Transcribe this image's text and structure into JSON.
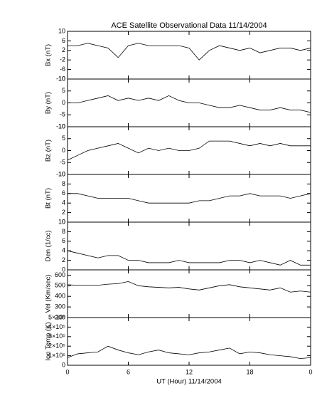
{
  "chart_data": [
    {
      "type": "line",
      "title": "ACE Satellite Observational Data   11/14/2004",
      "ylabel": "Bx (nT)",
      "x": [
        0,
        1,
        2,
        3,
        4,
        5,
        6,
        7,
        8,
        9,
        10,
        11,
        12,
        13,
        14,
        15,
        16,
        17,
        18,
        19,
        20,
        21,
        22,
        23,
        24
      ],
      "xlim": [
        0,
        24
      ],
      "xticks": [
        0,
        6,
        12,
        18,
        24
      ],
      "series": [
        {
          "color": "#000000",
          "values": [
            4,
            4,
            5,
            4,
            3,
            -1,
            4,
            5,
            4,
            4,
            4,
            4,
            3,
            -2,
            2,
            4,
            3,
            2,
            3,
            1,
            2,
            3,
            3,
            2,
            3
          ]
        }
      ],
      "ylim": [
        -10,
        10
      ],
      "yticks": [
        -10,
        -6,
        -2,
        2,
        6,
        10
      ]
    },
    {
      "type": "line",
      "ylabel": "By (nT)",
      "x": [
        0,
        1,
        2,
        3,
        4,
        5,
        6,
        7,
        8,
        9,
        10,
        11,
        12,
        13,
        14,
        15,
        16,
        17,
        18,
        19,
        20,
        21,
        22,
        23,
        24
      ],
      "xlim": [
        0,
        24
      ],
      "xticks": [
        0,
        6,
        12,
        18,
        24
      ],
      "series": [
        {
          "color": "#000000",
          "values": [
            0,
            0,
            1,
            2,
            3,
            1,
            2,
            1,
            2,
            1,
            3,
            1,
            0,
            0,
            -1,
            -2,
            -2,
            -1,
            -2,
            -3,
            -3,
            -2,
            -3,
            -3,
            -4
          ]
        }
      ],
      "ylim": [
        -10,
        10
      ],
      "yticks": [
        -10,
        -5,
        0,
        5,
        10
      ]
    },
    {
      "type": "line",
      "ylabel": "Bz (nT)",
      "x": [
        0,
        1,
        2,
        3,
        4,
        5,
        6,
        7,
        8,
        9,
        10,
        11,
        12,
        13,
        14,
        15,
        16,
        17,
        18,
        19,
        20,
        21,
        22,
        23,
        24
      ],
      "xlim": [
        0,
        24
      ],
      "xticks": [
        0,
        6,
        12,
        18,
        24
      ],
      "series": [
        {
          "color": "#000000",
          "values": [
            -4,
            -2,
            0,
            1,
            2,
            3,
            1,
            -1,
            1,
            0,
            1,
            0,
            0,
            1,
            4,
            4,
            4,
            3,
            2,
            3,
            2,
            3,
            2,
            2,
            2
          ]
        }
      ],
      "ylim": [
        -10,
        10
      ],
      "yticks": [
        -10,
        -5,
        0,
        5,
        10
      ]
    },
    {
      "type": "line",
      "ylabel": "Bt (nT)",
      "x": [
        0,
        1,
        2,
        3,
        4,
        5,
        6,
        7,
        8,
        9,
        10,
        11,
        12,
        13,
        14,
        15,
        16,
        17,
        18,
        19,
        20,
        21,
        22,
        23,
        24
      ],
      "xlim": [
        0,
        24
      ],
      "xticks": [
        0,
        6,
        12,
        18,
        24
      ],
      "series": [
        {
          "color": "#000000",
          "values": [
            6,
            6,
            5.5,
            5,
            5,
            5,
            5,
            4.5,
            4,
            4,
            4,
            4,
            4,
            4.5,
            4.5,
            5,
            5.5,
            5.5,
            6,
            5.5,
            5.5,
            5.5,
            5,
            5.5,
            6
          ]
        }
      ],
      "ylim": [
        0,
        10
      ],
      "yticks": [
        0,
        2,
        4,
        6,
        8,
        10
      ]
    },
    {
      "type": "line",
      "ylabel": "Den (1/cc)",
      "x": [
        0,
        1,
        2,
        3,
        4,
        5,
        6,
        7,
        8,
        9,
        10,
        11,
        12,
        13,
        14,
        15,
        16,
        17,
        18,
        19,
        20,
        21,
        22,
        23,
        24
      ],
      "xlim": [
        0,
        24
      ],
      "xticks": [
        0,
        6,
        12,
        18,
        24
      ],
      "series": [
        {
          "color": "#000000",
          "values": [
            4,
            3.5,
            3,
            2.5,
            3,
            3,
            2,
            2,
            1.5,
            1.5,
            1.5,
            2,
            1.5,
            1.5,
            1.5,
            1.5,
            2,
            2,
            1.5,
            2,
            1.5,
            1,
            2,
            1,
            1
          ]
        }
      ],
      "ylim": [
        0,
        10
      ],
      "yticks": [
        0,
        2,
        4,
        6,
        8,
        10
      ]
    },
    {
      "type": "line",
      "ylabel": "Vel (Km/sec)",
      "x": [
        0,
        1,
        2,
        3,
        4,
        5,
        6,
        7,
        8,
        9,
        10,
        11,
        12,
        13,
        14,
        15,
        16,
        17,
        18,
        19,
        20,
        21,
        22,
        23,
        24
      ],
      "xlim": [
        0,
        24
      ],
      "xticks": [
        0,
        6,
        12,
        18,
        24
      ],
      "series": [
        {
          "color": "#000000",
          "values": [
            510,
            505,
            505,
            505,
            515,
            520,
            540,
            500,
            490,
            485,
            480,
            485,
            470,
            460,
            480,
            500,
            510,
            490,
            480,
            470,
            460,
            480,
            440,
            450,
            440
          ]
        }
      ],
      "ylim": [
        200,
        650
      ],
      "yticks": [
        200,
        300,
        400,
        500,
        600
      ]
    },
    {
      "type": "line",
      "ylabel": "Ion Temp (K)",
      "xlabel": "UT (Hour)   11/14/2004",
      "x": [
        0,
        1,
        2,
        3,
        4,
        5,
        6,
        7,
        8,
        9,
        10,
        11,
        12,
        13,
        14,
        15,
        16,
        17,
        18,
        19,
        20,
        21,
        22,
        23,
        24
      ],
      "xlim": [
        0,
        24
      ],
      "xticks": [
        0,
        6,
        12,
        18,
        {
          "value": 24,
          "label": "0"
        }
      ],
      "series": [
        {
          "color": "#000000",
          "values": [
            80000,
            120000,
            130000,
            140000,
            200000,
            160000,
            130000,
            110000,
            140000,
            160000,
            130000,
            120000,
            110000,
            130000,
            140000,
            160000,
            180000,
            120000,
            140000,
            130000,
            110000,
            100000,
            90000,
            70000,
            80000
          ]
        }
      ],
      "ylim": [
        0,
        500000
      ],
      "yticks": [
        0,
        {
          "value": 100000,
          "label": "1×10⁵"
        },
        {
          "value": 200000,
          "label": "2×10⁵"
        },
        {
          "value": 300000,
          "label": "3×10⁵"
        },
        {
          "value": 400000,
          "label": "4×10⁵"
        },
        {
          "value": 500000,
          "label": "5×10⁵"
        }
      ]
    }
  ]
}
